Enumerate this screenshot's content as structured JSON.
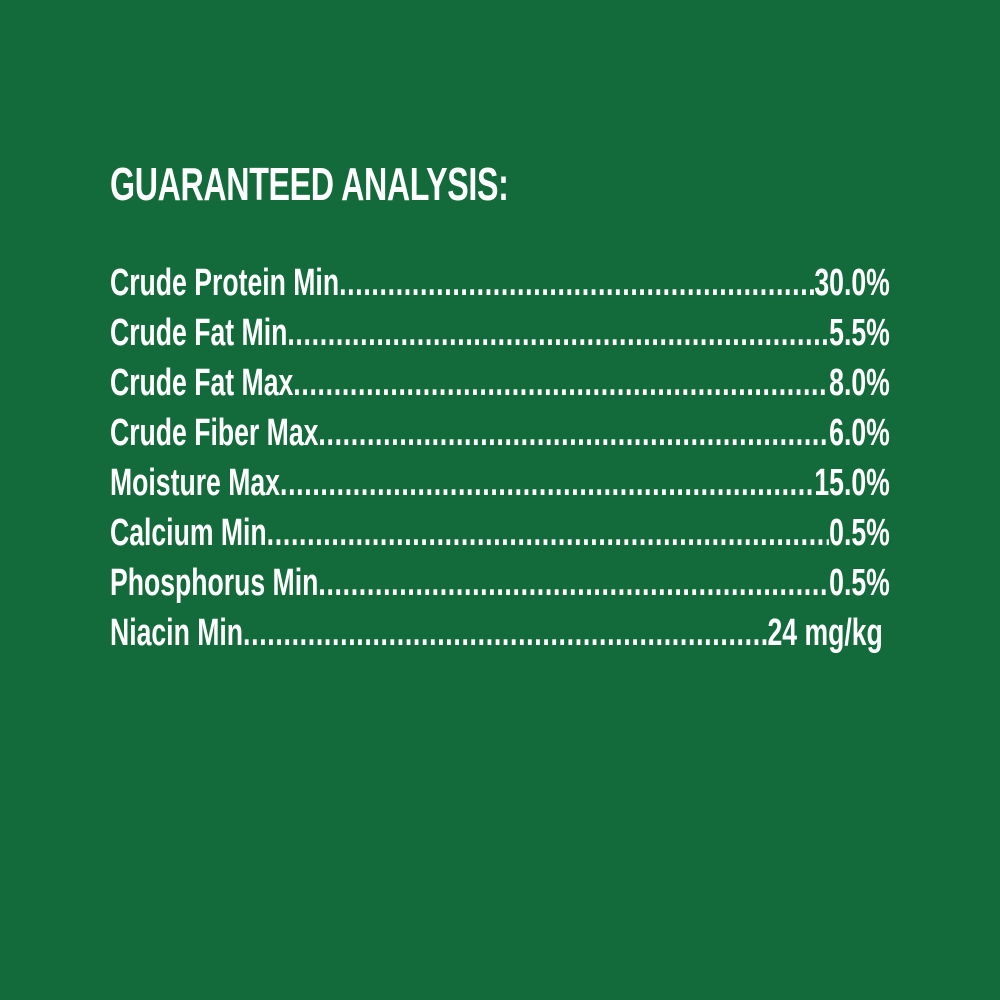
{
  "title": "GUARANTEED ANALYSIS:",
  "background_color": "#136a3a",
  "rows": [
    {
      "label": "Crude Protein Min",
      "value": "30.0%"
    },
    {
      "label": "Crude Fat Min",
      "value": "5.5%"
    },
    {
      "label": "Crude Fat Max",
      "value": "8.0%"
    },
    {
      "label": "Crude Fiber Max",
      "value": "6.0%"
    },
    {
      "label": "Moisture Max",
      "value": "15.0%"
    },
    {
      "label": "Calcium Min",
      "value": "0.5%"
    },
    {
      "label": "Phosphorus Min",
      "value": "0.5%"
    },
    {
      "label": "Niacin Min",
      "value": "24 mg/kg"
    }
  ]
}
